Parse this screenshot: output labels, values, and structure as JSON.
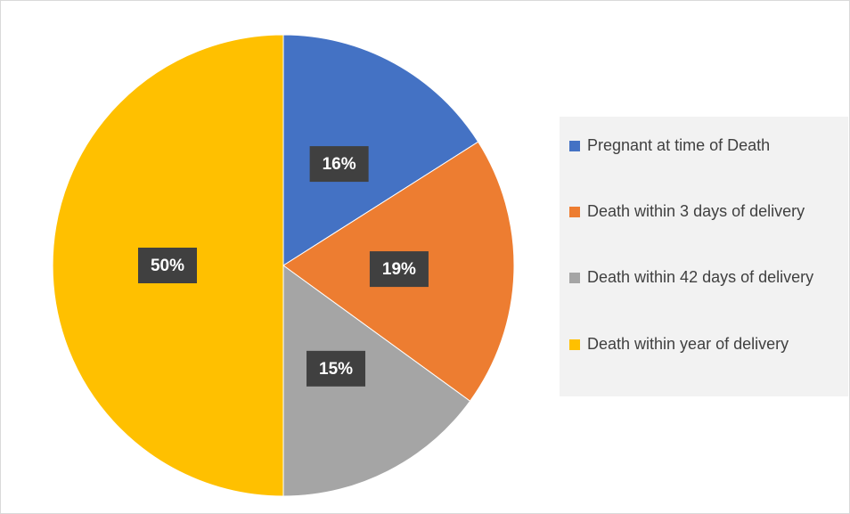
{
  "chart_data": {
    "type": "pie",
    "categories": [
      "Pregnant at time of Death",
      "Death within 3 days of delivery",
      "Death within 42 days of delivery",
      "Death within year of delivery"
    ],
    "values": [
      16,
      19,
      15,
      50
    ],
    "value_labels": [
      "16%",
      "19%",
      "15%",
      "50%"
    ],
    "colors": [
      "#4472c4",
      "#ed7d31",
      "#a5a5a5",
      "#ffc000"
    ],
    "legend": "right"
  }
}
